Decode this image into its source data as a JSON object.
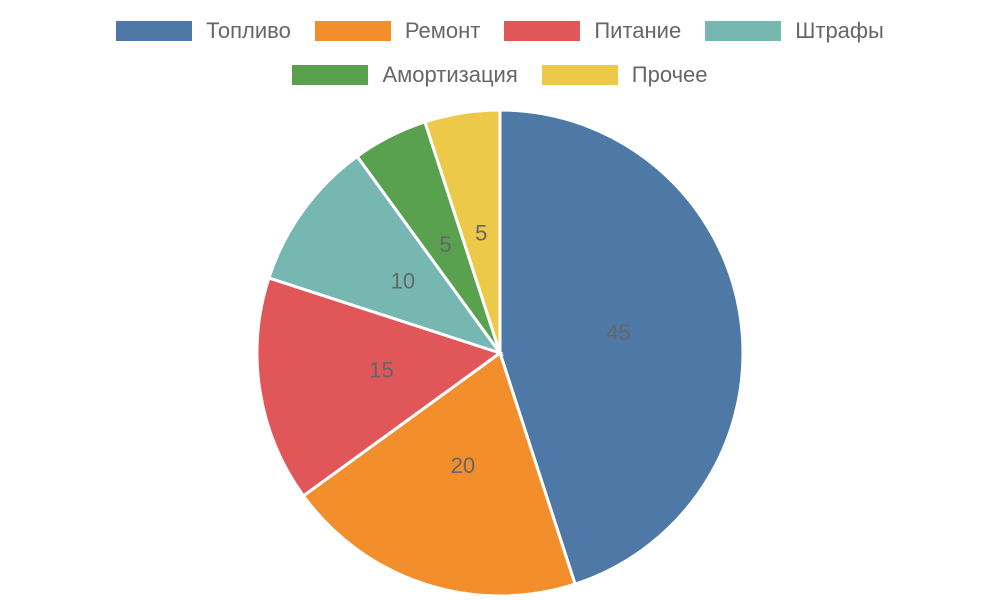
{
  "chart_data": {
    "type": "pie",
    "categories": [
      "Топливо",
      "Ремонт",
      "Питание",
      "Штрафы",
      "Амортизация",
      "Прочее"
    ],
    "values": [
      45,
      20,
      15,
      10,
      5,
      5
    ],
    "colors": [
      "#4e79a7",
      "#f28e2c",
      "#e15759",
      "#76b7b2",
      "#59a14f",
      "#edc949"
    ]
  }
}
